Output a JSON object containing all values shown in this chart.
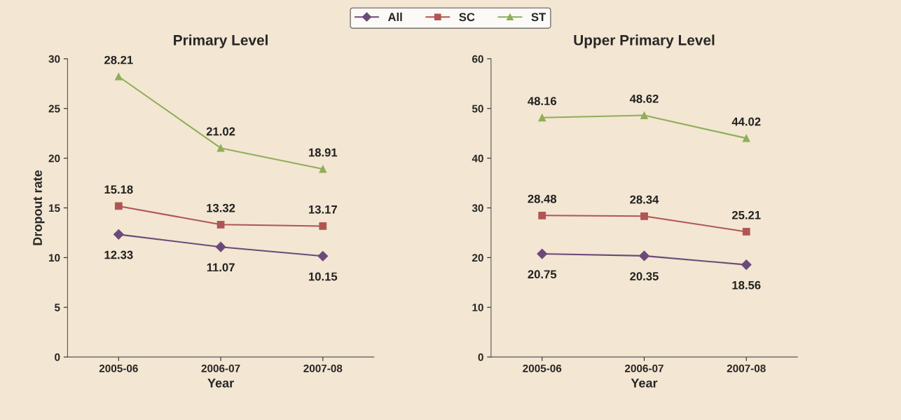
{
  "chart_data": [
    {
      "type": "line",
      "title": "Primary Level",
      "xlabel": "Year",
      "ylabel": "Dropout rate",
      "categories": [
        "2005-06",
        "2006-07",
        "2007-08"
      ],
      "ylim": [
        0,
        30
      ],
      "yticks": [
        0,
        5,
        10,
        15,
        20,
        25,
        30
      ],
      "legend": "top",
      "data_labels": true,
      "grid": false,
      "series": [
        {
          "name": "All",
          "color": "#6b4a7a",
          "marker": "diamond",
          "values": [
            12.33,
            11.07,
            10.15
          ]
        },
        {
          "name": "SC",
          "color": "#b05555",
          "marker": "square",
          "values": [
            15.18,
            13.32,
            13.17
          ]
        },
        {
          "name": "ST",
          "color": "#8fae5a",
          "marker": "triangle",
          "values": [
            28.21,
            21.02,
            18.91
          ]
        }
      ]
    },
    {
      "type": "line",
      "title": "Upper Primary Level",
      "xlabel": "Year",
      "categories": [
        "2005-06",
        "2006-07",
        "2007-08"
      ],
      "ylim": [
        0,
        60
      ],
      "yticks": [
        0,
        10,
        20,
        30,
        40,
        50,
        60
      ],
      "data_labels": true,
      "grid": false,
      "series": [
        {
          "name": "All",
          "color": "#6b4a7a",
          "marker": "diamond",
          "values": [
            20.75,
            20.35,
            18.56
          ]
        },
        {
          "name": "SC",
          "color": "#b05555",
          "marker": "square",
          "values": [
            28.48,
            28.34,
            25.21
          ]
        },
        {
          "name": "ST",
          "color": "#8fae5a",
          "marker": "triangle",
          "values": [
            48.16,
            48.62,
            44.02
          ]
        }
      ]
    }
  ]
}
